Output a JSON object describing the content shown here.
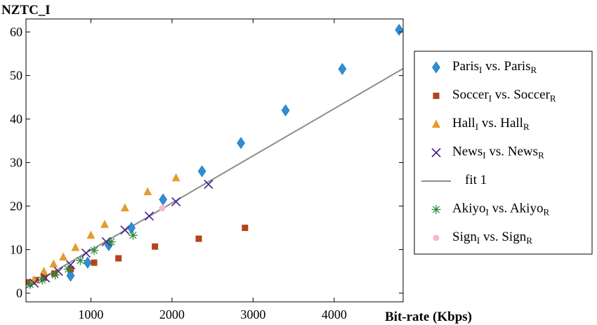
{
  "chart_data": {
    "type": "scatter",
    "ylabel": "NZTC_I",
    "xlabel": "Bit-rate (Kbps)",
    "xlim": [
      200,
      4850
    ],
    "ylim": [
      -2,
      63
    ],
    "xticks": [
      1000,
      2000,
      3000,
      4000
    ],
    "yticks": [
      0,
      10,
      20,
      30,
      40,
      50,
      60
    ],
    "grid": false,
    "legend_position": "right",
    "legend": [
      {
        "base1": "Paris",
        "sub1": "I",
        "mid": " vs. ",
        "base2": "Paris",
        "sub2": "R"
      },
      {
        "base1": "Soccer",
        "sub1": "I",
        "mid": " vs. ",
        "base2": "Soccer",
        "sub2": "R"
      },
      {
        "base1": "Hall",
        "sub1": "I",
        "mid": " vs. ",
        "base2": "Hall",
        "sub2": "R"
      },
      {
        "base1": "News",
        "sub1": "I",
        "mid": " vs. ",
        "base2": "News",
        "sub2": "R"
      },
      {
        "base1": "fit 1",
        "sub1": "",
        "mid": "",
        "base2": "",
        "sub2": ""
      },
      {
        "base1": "Akiyo",
        "sub1": "I",
        "mid": " vs. ",
        "base2": "Akiyo",
        "sub2": "R"
      },
      {
        "base1": "Sign",
        "sub1": "I",
        "mid": " vs. ",
        "base2": "Sign",
        "sub2": "R"
      }
    ],
    "series": [
      {
        "marker": "diamond",
        "color": "#2e8fd6",
        "x": [
          750,
          960,
          1220,
          1500,
          1890,
          2370,
          2850,
          3400,
          4100,
          4800
        ],
        "y": [
          4,
          7,
          11,
          15,
          21.5,
          28,
          34.5,
          42,
          51.5,
          60.5
        ]
      },
      {
        "marker": "square",
        "color": "#b5441b",
        "x": [
          220,
          320,
          420,
          550,
          750,
          1040,
          1340,
          1790,
          2330,
          2900
        ],
        "y": [
          2.5,
          3,
          3.5,
          4.5,
          5.5,
          7,
          8,
          10.7,
          12.5,
          15
        ]
      },
      {
        "marker": "triangle",
        "color": "#e59c2a",
        "x": [
          300,
          420,
          540,
          660,
          810,
          1000,
          1170,
          1420,
          1700,
          2050
        ],
        "y": [
          3,
          5,
          6.7,
          8.3,
          10.5,
          13.3,
          15.8,
          19.6,
          23.3,
          26.5
        ]
      },
      {
        "marker": "x",
        "color": "#4a1d8c",
        "x": [
          300,
          440,
          600,
          750,
          940,
          1190,
          1420,
          1720,
          2050,
          2450
        ],
        "y": [
          2.3,
          3.5,
          5,
          6.5,
          9.2,
          11.8,
          14.5,
          17.7,
          21,
          25
        ]
      },
      {
        "marker": "star",
        "color": "#2e8a3a",
        "x": [
          250,
          400,
          560,
          720,
          870,
          1040,
          1250,
          1520
        ],
        "y": [
          2,
          3,
          4.2,
          5.5,
          7.5,
          9.8,
          11.8,
          13.3
        ]
      },
      {
        "marker": "circle",
        "color": "#f7b8d5",
        "x": [
          1880
        ],
        "y": [
          19.5
        ]
      }
    ],
    "fit": {
      "name": "fit 1",
      "color": "#8c8c8c",
      "x": [
        200,
        4850
      ],
      "y": [
        1.2,
        51.6
      ]
    }
  }
}
